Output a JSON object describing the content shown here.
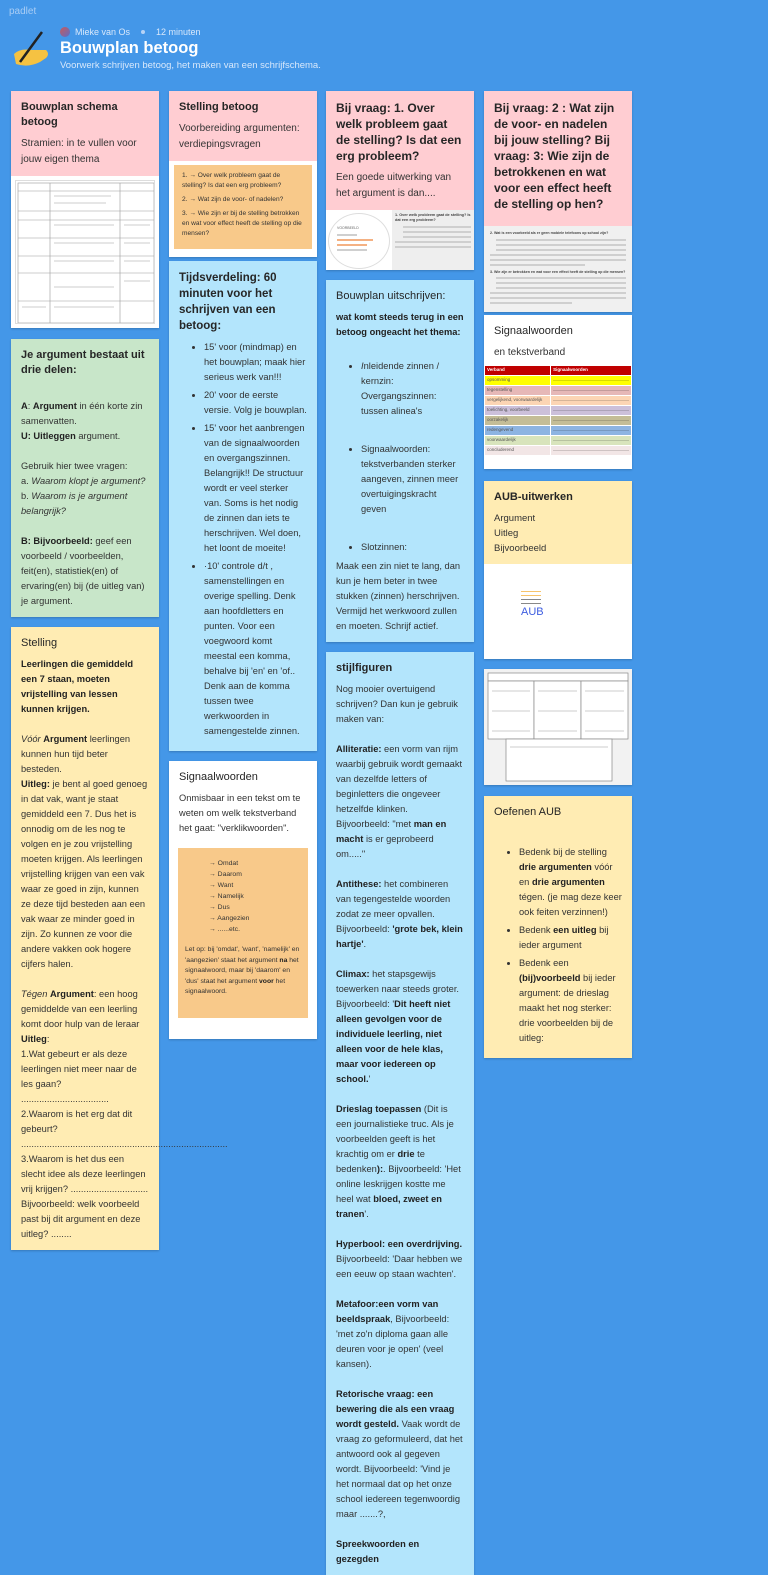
{
  "header": {
    "brand": "padlet",
    "author": "Mieke van Os",
    "time": "12 minuten",
    "title": "Bouwplan betoog",
    "subtitle": "Voorwerk schrijven betoog, het maken van een schrijfschema."
  },
  "colors": {
    "background": "#4497e8",
    "pink": "#ffcdd2",
    "green": "#c8e6c9",
    "yellow": "#ffecb3",
    "blue": "#b3e5fc",
    "orange": "#f8c98a"
  },
  "cards": {
    "schema": {
      "title": "Bouwplan schema betoog",
      "sub": "Stramien: in te vullen voor jouw eigen thema"
    },
    "green": {
      "title": "Je argument bestaat uit drie delen:",
      "body": [
        "",
        [
          {
            "b": "A"
          },
          ": ",
          {
            "b": "Argument"
          },
          " in één korte zin samenvatten."
        ],
        [
          {
            "b": "U: Uitleggen"
          },
          " argument."
        ],
        "",
        "Gebruik hier twee vragen:",
        [
          "a. ",
          {
            "i": "Waarom klopt je argument?"
          }
        ],
        [
          "b. ",
          {
            "i": "Waarom is je argument belangrijk?"
          }
        ],
        "",
        [
          {
            "b": "B: Bijvoorbeeld:"
          },
          " geef een voorbeeld / voorbeelden, feit(en),  statistiek(en) of ervaring(en) bij (de uitleg van) je argument."
        ]
      ]
    },
    "stelling": {
      "title": "Stelling",
      "body": [
        [
          {
            "b": "Leerlingen die gemiddeld een 7 staan, moeten vrijstelling van lessen kunnen krijgen."
          }
        ],
        "",
        [
          {
            "i": "Vóór"
          },
          " ",
          {
            "b": "Argument"
          },
          "  leerlingen kunnen hun tijd beter besteden."
        ],
        [
          {
            "b": "Uitleg:"
          },
          " je bent al goed genoeg in dat vak, want je staat gemiddeld een 7. Dus het is onnodig om de les nog te volgen en je zou vrijstelling moeten krijgen. Als leerlingen vrijstelling krijgen van een vak waar ze goed in zijn, kunnen ze deze tijd besteden aan een vak waar ze minder goed in zijn. Zo kunnen ze voor die andere vakken ook hogere cijfers halen."
        ],
        "",
        [
          {
            "i": "Tégen"
          },
          " ",
          {
            "b": "Argument"
          },
          ": een hoog gemiddelde van een leerling komt door hulp van de leraar"
        ],
        [
          {
            "b": "Uitleg"
          },
          ":"
        ],
        "1.Wat gebeurt er als deze leerlingen niet meer naar de les gaan?  ..................................",
        "2.Waarom is het erg dat dit gebeurt?",
        "................................................................................",
        "3.Waarom is het dus een slecht idee als deze leerlingen vrij krijgen? ..............................",
        "Bijvoorbeeld: welk voorbeeld past bij dit argument en deze uitleg? ........"
      ]
    },
    "stellingBetoog": {
      "title": "Stelling betoog",
      "sub": "Voorbereiding argumenten: verdiepingsvragen",
      "items": [
        "1.  → Over welk probleem gaat de stelling? Is dat een erg probleem?",
        "2.  → Wat zijn de voor- of nadelen?",
        "3.  → Wie zijn er bij de stelling betrokken en wat voor effect heeft de stelling op die mensen?"
      ]
    },
    "tijd": {
      "title": "Tijdsverdeling: 60 minuten voor het schrijven van een betoog:",
      "body": [
        {
          "ul": [
            "15' voor (mindmap) en het bouwplan; maak hier serieus werk van!!!",
            "20' voor de eerste versie. Volg je bouwplan.",
            "15' voor het aanbrengen van de signaalwoorden en overgangszinnen. Belangrijk!! De structuur wordt er veel sterker van. Soms is het nodig de zinnen dan iets te herschrijven. Wel doen, het loont de moeite!",
            "·10' controle d/t , samenstellingen en overige spelling. Denk aan hoofdletters en punten. Voor een voegwoord komt meestal een komma, behalve bij 'en' en  'of.. Denk aan de komma tussen twee werkwoorden in samengestelde zinnen."
          ]
        }
      ]
    },
    "signaal": {
      "title": "Signaalwoorden",
      "sub": "Onmisbaar in een tekst om te weten om welk tekstverband het gaat: \"verklikwoorden\".",
      "words": [
        "Omdat",
        "Daarom",
        "Want",
        "Namelijk",
        "Dus",
        "Aangezien",
        "......etc."
      ],
      "note": [
        "Let op: bij 'omdat', 'want', 'namelijk' en 'aangezien' staat het argument ",
        {
          "b": "na"
        },
        " het signaalwoord, maar bij 'daarom' en 'dus' staat het argument ",
        {
          "b": "voor"
        },
        " het signaalwoord."
      ]
    },
    "vraag1": {
      "title": "Bij vraag: 1. Over welk probleem gaat de stelling? Is dat een erg probleem?",
      "sub": "Een goede uitwerking van het argument is dan....",
      "thumb_left": "VOORBEELD",
      "thumb_right": "1. Over welk probleem gaat de stelling? Is dat een erg probleem?"
    },
    "uitschrijven": {
      "title": "Bouwplan uitschrijven:",
      "body": [
        [
          {
            "b": "wat komt steeds terug in een betoog ongeacht het thema:"
          }
        ],
        "",
        {
          "ul": [
            [
              {
                "i": "I"
              },
              "nleidende zinnen / kernzin: Overgangszinnen: tussen alinea's"
            ]
          ]
        },
        "",
        {
          "ul": [
            "Signaalwoorden: tekstverbanden sterker aangeven, zinnen meer overtuigingskracht geven"
          ]
        },
        "",
        {
          "ul": [
            "Slotzinnen:"
          ]
        },
        "Maak een zin niet te lang, dan kun je hem beter in twee stukken (zinnen) herschrijven. Vermijd het werkwoord zullen en moeten. Schrijf actief."
      ]
    },
    "stijl": {
      "title": "stijlfiguren",
      "body": [
        "Nog mooier overtuigend schrijven? Dan kun je gebruik maken van:",
        "",
        [
          {
            "b": "Alliteratie:"
          },
          " een vorm van rijm waarbij gebruik wordt gemaakt van dezelfde letters of beginletters die ongeveer hetzelfde klinken. Bijvoorbeeld: \"met ",
          {
            "b": "man en macht"
          },
          " is er geprobeerd om.....\""
        ],
        "",
        [
          {
            "b": "Antithese:"
          },
          " het combineren van tegengestelde woorden zodat ze meer opvallen. Bijvoorbeeld: ",
          {
            "b": "'grote bek, klein hartje'"
          },
          "."
        ],
        "",
        [
          {
            "b": "Climax:"
          },
          " het stapsgewijs toewerken naar steeds groter. Bijvoorbeeld: '",
          {
            "b": "Dit heeft niet alleen gevolgen voor de individuele leerling, niet alleen voor de hele klas, maar voor iedereen op school."
          },
          "'"
        ],
        "",
        [
          {
            "b": "Drieslag toepassen"
          },
          " (Dit is een journalistieke truc.  Als je voorbeelden geeft is het krachtig om er ",
          {
            "b": "drie"
          },
          " te bedenken",
          {
            "b": "):"
          },
          ". Bijvoorbeeld: 'Het online leskrijgen kostte me heel wat ",
          {
            "b": "bloed, zweet en tranen"
          },
          "'."
        ],
        "",
        [
          {
            "b": "Hyperbool: een overdrijving."
          },
          " Bijvoorbeeld: 'Daar hebben we een eeuw op staan wachten'."
        ],
        "",
        [
          {
            "b": "Metafoor:een vorm van beeldspraak"
          },
          ", Bijvoorbeeld: 'met zo'n diploma gaan alle deuren voor je open' (veel kansen)."
        ],
        "",
        [
          {
            "b": "Retorische vraag: een bewering die als een vraag wordt gesteld."
          },
          " Vaak wordt de vraag zo geformuleerd, dat het antwoord ook al gegeven wordt. Bijvoorbeeld: 'Vind je het normaal dat op het onze school iedereen tegenwoordig maar .......?,"
        ],
        "",
        [
          {
            "b": "Spreekwoorden en gezegden"
          }
        ]
      ]
    },
    "vraag2": {
      "title": "Bij vraag: 2 : Wat zijn de voor- en nadelen bij jouw stelling? Bij vraag: 3: Wie zijn de betrokkenen en wat voor een effect heeft de stelling op hen?",
      "thumb_q2": "2. Wat is een voorbeeld als er geen mobiele telefoons op school zijn?",
      "thumb_q3": "3. Wie zijn er betrokken en wat voor een effect heeft de stelling op die mensen?"
    },
    "signaal2": {
      "title": "Signaalwoorden",
      "sub": "en tekstverband",
      "table_head": [
        "Verband",
        "Signaalwoorden"
      ],
      "rows": [
        {
          "label": "opsomming",
          "color": "#ffff00"
        },
        {
          "label": "tegenstelling",
          "color": "#e6b8b7"
        },
        {
          "label": "vergelijkend, voorwaardelijk",
          "color": "#fcd5b4"
        },
        {
          "label": "toelichting, voorbeeld",
          "color": "#ccc0da"
        },
        {
          "label": "oorzakelijk",
          "color": "#c4bd97"
        },
        {
          "label": "redengevend",
          "color": "#8db4e2"
        },
        {
          "label": "voorwaardelijk",
          "color": "#d8e4bc"
        },
        {
          "label": "concluderend",
          "color": "#f2e6e6"
        }
      ],
      "head_color": "#c00000"
    },
    "aub": {
      "title": "AUB-uitwerken",
      "lines": [
        "Argument",
        "Uitleg",
        "Bijvoorbeeld"
      ],
      "logo": "AUB"
    },
    "oefenen": {
      "title": "Oefenen AUB",
      "body": [
        "",
        {
          "ul": [
            [
              "Bedenk bij de stelling ",
              {
                "b": "drie argumenten"
              },
              " vóór en ",
              {
                "b": "drie argumenten"
              },
              " tégen. (je mag deze keer ook feiten verzinnen!)"
            ],
            [
              "Bedenk ",
              {
                "b": "een uitleg"
              },
              " bij ieder argument"
            ],
            [
              "Bedenk een ",
              {
                "b": "(bij)voorbeeld"
              },
              " bij ieder argument: de drieslag maakt het nog sterker: drie voorbeelden bij de uitleg:"
            ]
          ]
        }
      ]
    }
  }
}
